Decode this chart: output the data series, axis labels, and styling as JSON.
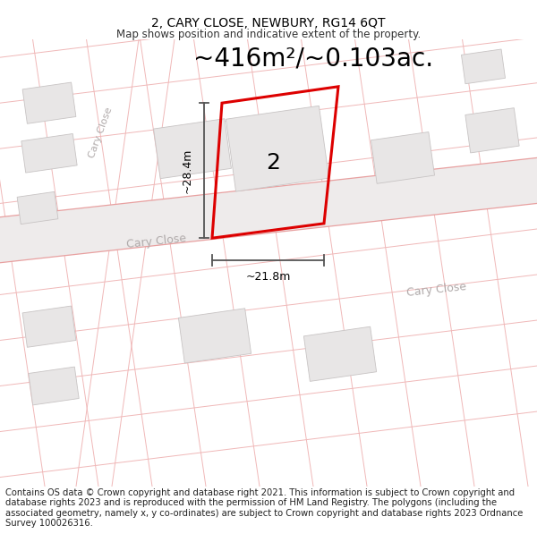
{
  "title": "2, CARY CLOSE, NEWBURY, RG14 6QT",
  "subtitle": "Map shows position and indicative extent of the property.",
  "area_text": "~416m²/~0.103ac.",
  "number_label": "2",
  "width_label": "~21.8m",
  "height_label": "~28.4m",
  "road_label_diag": "Cary Close",
  "road_label_left": "Cary Close",
  "road_label_right": "Cary Close",
  "footer_text": "Contains OS data © Crown copyright and database right 2021. This information is subject to Crown copyright and database rights 2023 and is reproduced with the permission of HM Land Registry. The polygons (including the associated geometry, namely x, y co-ordinates) are subject to Crown copyright and database rights 2023 Ordnance Survey 100026316.",
  "bg_color": "#ffffff",
  "map_bg": "#ffffff",
  "plot_outline_color": "#dd0000",
  "building_fill": "#e8e6e6",
  "building_edge": "#c8c4c4",
  "boundary_line_color": "#f0b8b8",
  "boundary_line_color2": "#e8a0a0",
  "road_fill": "#eeebeb",
  "road_label_color": "#b0aaaa",
  "dim_line_color": "#555555",
  "title_fontsize": 10,
  "subtitle_fontsize": 8.5,
  "area_fontsize": 20,
  "number_fontsize": 18,
  "label_fontsize": 9,
  "road_label_fontsize": 9,
  "footer_fontsize": 7.2
}
